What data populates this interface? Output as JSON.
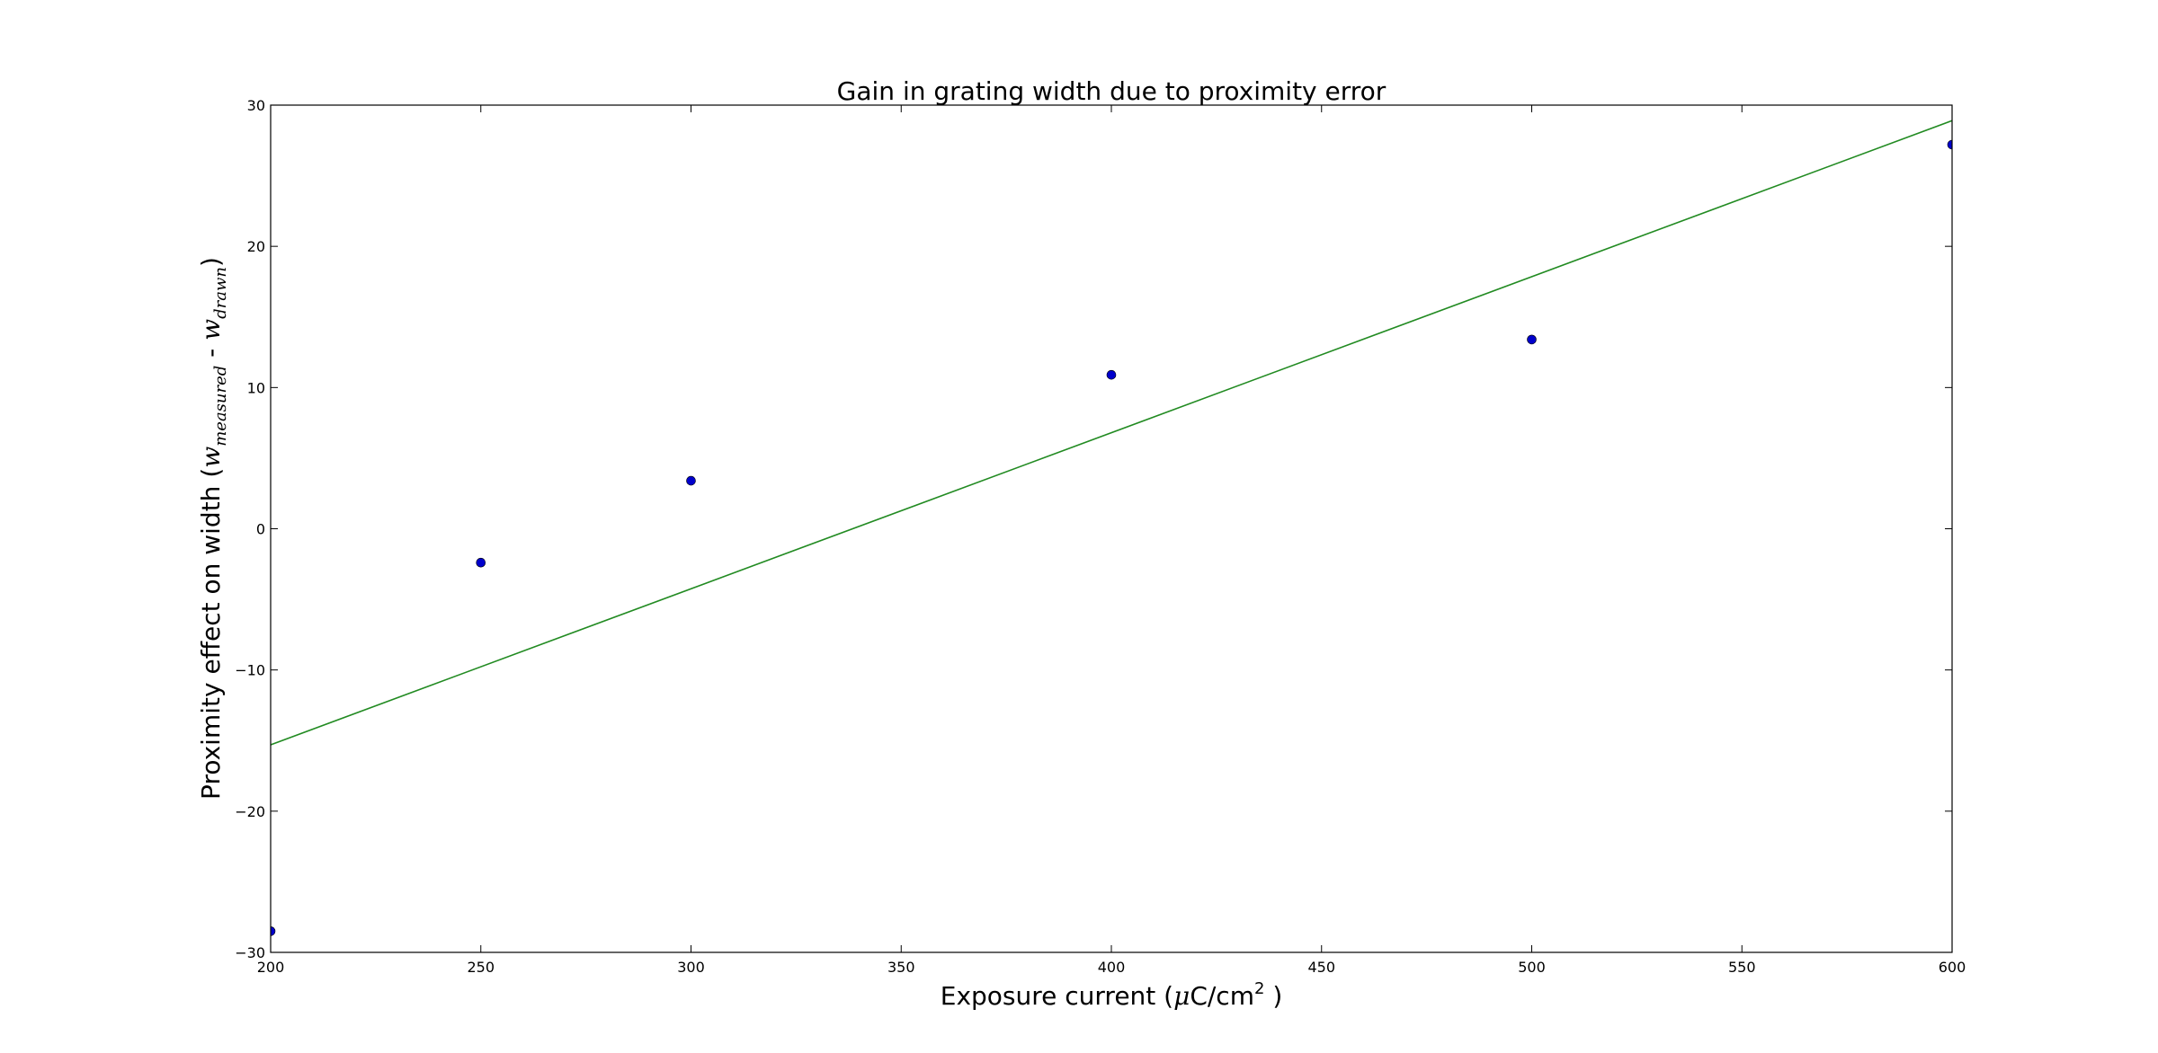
{
  "chart_data": {
    "type": "scatter",
    "title": "Gain in grating width due to proximity error",
    "xlabel": {
      "pre": "Exposure current (",
      "mu": "μ",
      "unit": "C/cm",
      "sup": "2",
      "post": " )"
    },
    "ylabel": {
      "pre": "Proximity effect on width (",
      "w1": "w",
      "sub1": "measured",
      "mid": " - ",
      "w2": "w",
      "sub2": "drawn",
      "post": ")"
    },
    "xlim": [
      200,
      600
    ],
    "ylim": [
      -30,
      30
    ],
    "xticks": [
      200,
      250,
      300,
      350,
      400,
      450,
      500,
      550,
      600
    ],
    "yticks": [
      -30,
      -20,
      -10,
      0,
      10,
      20,
      30
    ],
    "xtick_labels": [
      "200",
      "250",
      "300",
      "350",
      "400",
      "450",
      "500",
      "550",
      "600"
    ],
    "ytick_labels": [
      "−30",
      "−20",
      "−10",
      "0",
      "10",
      "20",
      "30"
    ],
    "grid": false,
    "series": [
      {
        "type": "scatter",
        "color": "#0000cc",
        "x": [
          200,
          250,
          300,
          400,
          500,
          600
        ],
        "y": [
          -28.5,
          -2.4,
          3.4,
          10.9,
          13.4,
          27.2
        ]
      },
      {
        "type": "line",
        "color": "#228b22",
        "x": [
          200,
          600
        ],
        "y": [
          -15.3,
          28.9
        ]
      }
    ]
  }
}
